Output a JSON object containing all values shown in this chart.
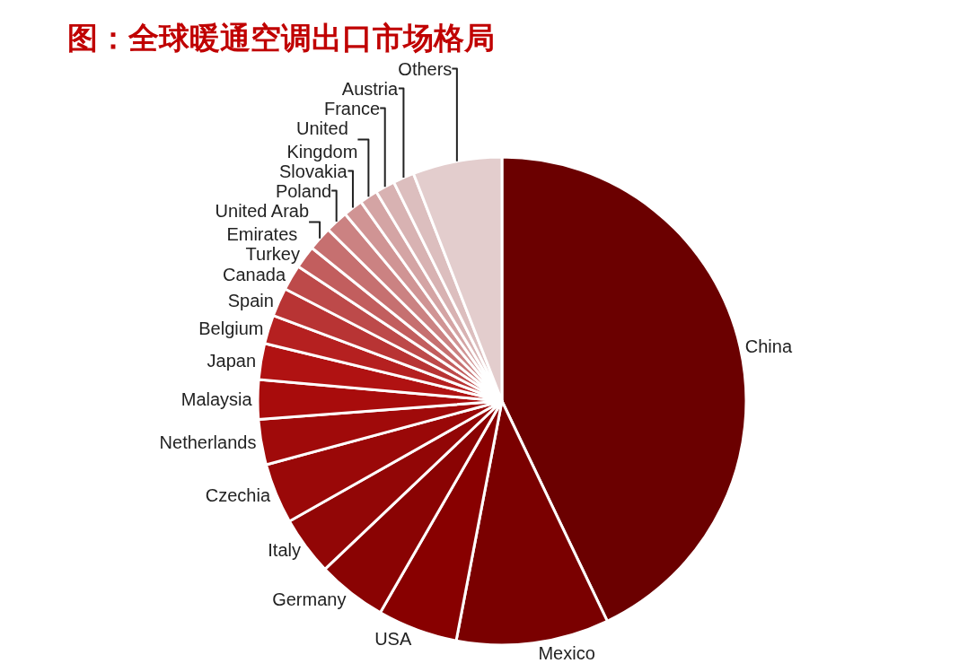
{
  "chart_data": {
    "type": "pie",
    "title": "图：全球暖通空调出口市场格局",
    "categories": [
      "China",
      "Mexico",
      "USA",
      "Germany",
      "Italy",
      "Czechia",
      "Netherlands",
      "Malaysia",
      "Japan",
      "Belgium",
      "Spain",
      "Canada",
      "Turkey",
      "United Arab Emirates",
      "Poland",
      "Slovakia",
      "United Kingdom",
      "France",
      "Austria",
      "Others"
    ],
    "values": [
      42.9,
      10.1,
      5.3,
      4.6,
      3.9,
      4.0,
      3.0,
      2.6,
      2.4,
      1.9,
      1.9,
      1.7,
      1.5,
      1.6,
      1.5,
      1.3,
      1.2,
      1.3,
      1.4,
      5.9
    ],
    "colors": [
      "#6b0000",
      "#7a0000",
      "#880000",
      "#8a0303",
      "#920606",
      "#9a0808",
      "#a00a0a",
      "#a80c0c",
      "#b01212",
      "#b52020",
      "#b83434",
      "#bd4a4a",
      "#c25e5e",
      "#c67070",
      "#cb8282",
      "#d09494",
      "#d4a4a4",
      "#d8b2b2",
      "#dcbebe",
      "#e3cdcd"
    ],
    "legend": false
  }
}
